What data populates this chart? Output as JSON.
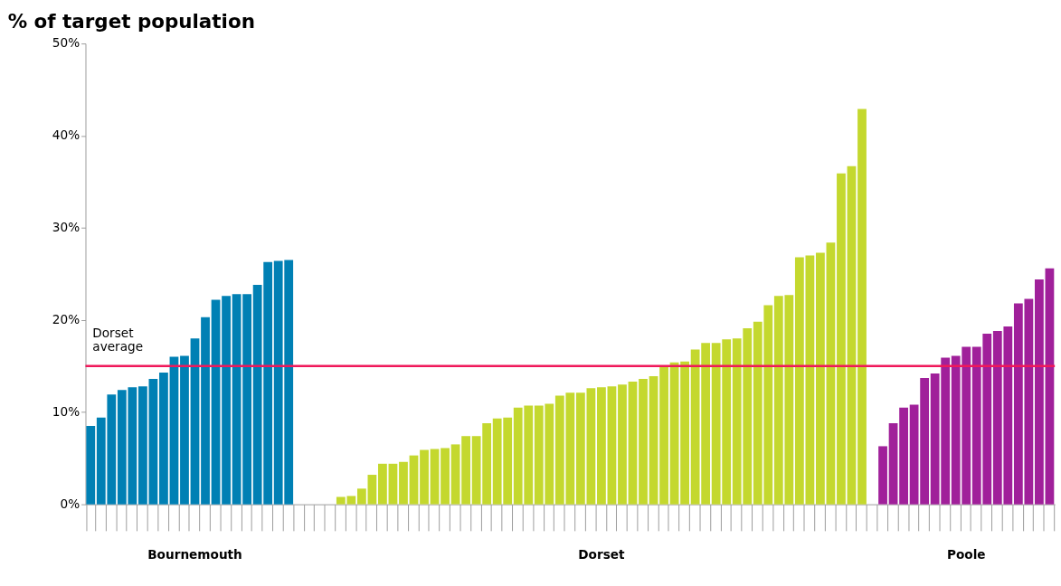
{
  "chart_data": {
    "type": "bar",
    "title": "% of target population",
    "categories": [
      null,
      null,
      null,
      null,
      null,
      null,
      null,
      null,
      null,
      null,
      null,
      null,
      null,
      null,
      null,
      null,
      null,
      null,
      null,
      null,
      null,
      null,
      null,
      null,
      null,
      null,
      null,
      null,
      null,
      null,
      null,
      null,
      null,
      null,
      null,
      null,
      null,
      null,
      null,
      null,
      null,
      null,
      null,
      null,
      null,
      null,
      null,
      null,
      null,
      null,
      null,
      null,
      null,
      null,
      null,
      null,
      null,
      null,
      null,
      null,
      null,
      null,
      null,
      null,
      null,
      null,
      null,
      null,
      null,
      null,
      null,
      null,
      null,
      null,
      null,
      null,
      null,
      null,
      null,
      null,
      null,
      null,
      null,
      null,
      null,
      null,
      null,
      null,
      null,
      null,
      null,
      null,
      null
    ],
    "series": [
      {
        "name": "Bournemouth",
        "color": "#0080b4",
        "values": [
          8.5,
          9.4,
          11.9,
          12.4,
          12.7,
          12.8,
          13.6,
          14.3,
          16.0,
          16.1,
          18.0,
          20.3,
          22.2,
          22.6,
          22.8,
          22.8,
          23.8,
          26.3,
          26.4,
          26.5,
          null,
          null,
          null,
          null,
          null,
          null,
          null,
          null,
          null,
          null,
          null,
          null,
          null,
          null,
          null,
          null,
          null,
          null,
          null,
          null,
          null,
          null,
          null,
          null,
          null,
          null,
          null,
          null,
          null,
          null,
          null,
          null,
          null,
          null,
          null,
          null,
          null,
          null,
          null,
          null,
          null,
          null,
          null,
          null,
          null,
          null,
          null,
          null,
          null,
          null,
          null,
          null,
          null,
          null,
          null,
          null,
          null,
          null,
          null,
          null,
          null,
          null,
          null,
          null,
          null,
          null,
          null,
          null,
          null,
          null,
          null,
          null,
          null
        ]
      },
      {
        "name": "Dorset",
        "color": "#c4d82e",
        "values": [
          null,
          null,
          null,
          null,
          null,
          null,
          null,
          null,
          null,
          null,
          null,
          null,
          null,
          null,
          null,
          null,
          null,
          null,
          null,
          null,
          null,
          null,
          null,
          null,
          0.8,
          0.9,
          1.7,
          3.2,
          4.4,
          4.4,
          4.6,
          5.3,
          5.9,
          6.0,
          6.1,
          6.5,
          7.4,
          7.4,
          8.8,
          9.3,
          9.4,
          10.5,
          10.7,
          10.7,
          10.9,
          11.8,
          12.1,
          12.1,
          12.6,
          12.7,
          12.8,
          13.0,
          13.3,
          13.6,
          13.9,
          14.9,
          15.4,
          15.5,
          16.8,
          17.5,
          17.5,
          17.9,
          18.0,
          19.1,
          19.8,
          21.6,
          22.6,
          22.7,
          26.8,
          27.0,
          27.3,
          28.4,
          35.9,
          36.7,
          42.9,
          null,
          null,
          null,
          null,
          null,
          null,
          null,
          null,
          null,
          null,
          null,
          null,
          null,
          null,
          null,
          null,
          null,
          null
        ]
      },
      {
        "name": "Poole",
        "color": "#a0209a",
        "values": [
          null,
          null,
          null,
          null,
          null,
          null,
          null,
          null,
          null,
          null,
          null,
          null,
          null,
          null,
          null,
          null,
          null,
          null,
          null,
          null,
          null,
          null,
          null,
          null,
          null,
          null,
          null,
          null,
          null,
          null,
          null,
          null,
          null,
          null,
          null,
          null,
          null,
          null,
          null,
          null,
          null,
          null,
          null,
          null,
          null,
          null,
          null,
          null,
          null,
          null,
          null,
          null,
          null,
          null,
          null,
          null,
          null,
          null,
          null,
          null,
          null,
          null,
          null,
          null,
          null,
          null,
          null,
          null,
          null,
          null,
          null,
          null,
          null,
          null,
          null,
          null,
          6.3,
          8.8,
          10.5,
          10.8,
          13.7,
          14.2,
          15.9,
          16.1,
          17.1,
          17.1,
          18.5,
          18.8,
          19.3,
          21.8,
          22.3,
          24.4,
          25.6
        ]
      }
    ],
    "ylim": [
      0,
      50
    ],
    "yticks": [
      {
        "value": 0,
        "label": "0%"
      },
      {
        "value": 10,
        "label": "10%"
      },
      {
        "value": 20,
        "label": "20%"
      },
      {
        "value": 30,
        "label": "30%"
      },
      {
        "value": 40,
        "label": "40%"
      },
      {
        "value": 50,
        "label": "50%"
      }
    ],
    "ref_lines": [
      {
        "axis": "y",
        "value": 15,
        "label": "Dorset average",
        "color": "#f0185a"
      }
    ],
    "grid": false,
    "legend": false,
    "tick_labels": "y"
  }
}
